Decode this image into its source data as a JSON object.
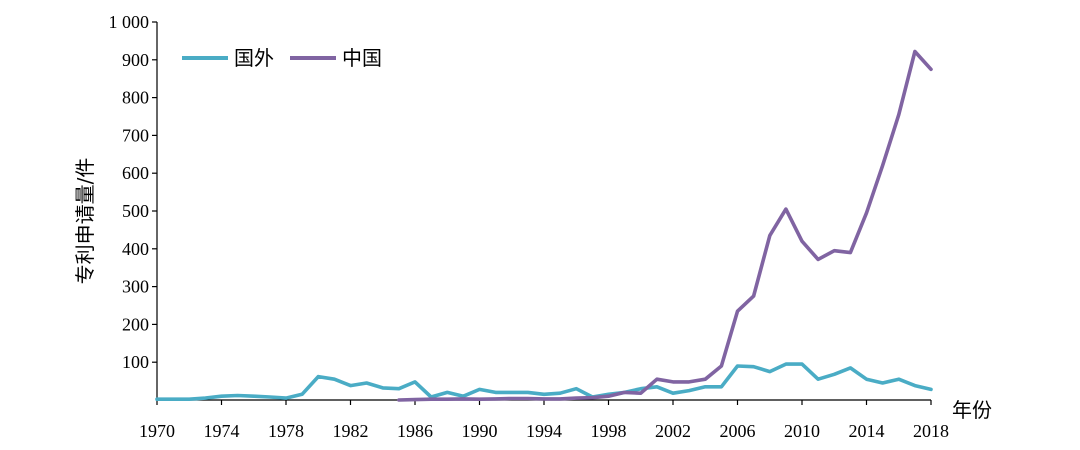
{
  "chart_data": {
    "type": "line",
    "title": "",
    "xlabel": "年份",
    "ylabel": "专利申请量/件",
    "xlim": [
      1970,
      2018
    ],
    "ylim": [
      0,
      1000
    ],
    "y_ticks": [
      100,
      200,
      300,
      400,
      500,
      600,
      700,
      800,
      900,
      1000
    ],
    "y_tick_labels": [
      "100",
      "200",
      "300",
      "400",
      "500",
      "600",
      "700",
      "800",
      "900",
      "1 000"
    ],
    "x_ticks": [
      1970,
      1974,
      1978,
      1982,
      1986,
      1990,
      1994,
      1998,
      2002,
      2006,
      2010,
      2014,
      2018
    ],
    "grid": false,
    "legend": "top-left",
    "series": [
      {
        "name": "国外",
        "color": "#4aacc5",
        "x": [
          1970,
          1971,
          1972,
          1973,
          1974,
          1975,
          1976,
          1977,
          1978,
          1979,
          1980,
          1981,
          1982,
          1983,
          1984,
          1985,
          1986,
          1987,
          1988,
          1989,
          1990,
          1991,
          1992,
          1993,
          1994,
          1995,
          1996,
          1997,
          1998,
          1999,
          2000,
          2001,
          2002,
          2003,
          2004,
          2005,
          2006,
          2007,
          2008,
          2009,
          2010,
          2011,
          2012,
          2013,
          2014,
          2015,
          2016,
          2017,
          2018
        ],
        "values": [
          2,
          2,
          2,
          5,
          10,
          12,
          10,
          8,
          5,
          15,
          62,
          55,
          38,
          45,
          32,
          30,
          48,
          8,
          20,
          10,
          28,
          20,
          20,
          20,
          15,
          18,
          30,
          8,
          15,
          20,
          30,
          35,
          18,
          25,
          35,
          35,
          90,
          88,
          75,
          95,
          95,
          55,
          68,
          85,
          55,
          45,
          55,
          38,
          28
        ]
      },
      {
        "name": "中国",
        "color": "#8064a2",
        "x": [
          1985,
          1986,
          1987,
          1988,
          1989,
          1990,
          1991,
          1992,
          1993,
          1994,
          1995,
          1996,
          1997,
          1998,
          1999,
          2000,
          2001,
          2002,
          2003,
          2004,
          2005,
          2006,
          2007,
          2008,
          2009,
          2010,
          2011,
          2012,
          2013,
          2014,
          2015,
          2016,
          2017,
          2018
        ],
        "values": [
          0,
          1,
          2,
          2,
          3,
          2,
          3,
          4,
          4,
          3,
          3,
          5,
          6,
          10,
          20,
          18,
          55,
          48,
          48,
          55,
          90,
          235,
          275,
          435,
          505,
          420,
          372,
          395,
          390,
          495,
          620,
          755,
          922,
          875
        ]
      }
    ]
  }
}
